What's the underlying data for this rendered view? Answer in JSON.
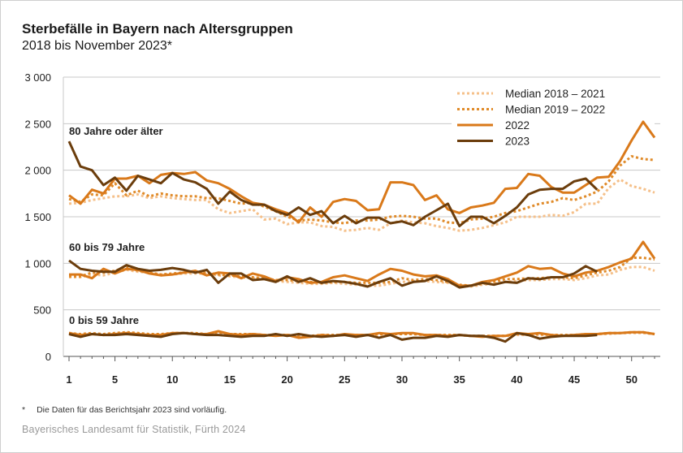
{
  "chart_data": {
    "type": "line",
    "title": "Sterbefälle in Bayern nach Altersgruppen",
    "subtitle": "2018 bis November 2023*",
    "xlabel": "",
    "ylabel": "",
    "ylim": [
      0,
      3000
    ],
    "yticks": [
      0,
      500,
      1000,
      1500,
      2000,
      2500,
      3000
    ],
    "ytick_labels": [
      "0",
      "500",
      "1 000",
      "1 500",
      "2 000",
      "2 500",
      "3 000"
    ],
    "xlim": [
      1,
      52
    ],
    "xticks": [
      1,
      5,
      10,
      15,
      20,
      25,
      30,
      35,
      40,
      45,
      50
    ],
    "grid": true,
    "legend_position": "top-right",
    "legend": [
      {
        "name": "Median 2018 – 2021",
        "color": "#f5c08a",
        "style": "dotted"
      },
      {
        "name": "Median 2019 – 2022",
        "color": "#e08b2a",
        "style": "dotted"
      },
      {
        "name": "2022",
        "color": "#d9791a",
        "style": "solid"
      },
      {
        "name": "2023",
        "color": "#6b3d0c",
        "style": "solid"
      }
    ],
    "groups": [
      {
        "label": "80 Jahre oder älter",
        "series": {
          "Median 2018 – 2021": [
            1640,
            1650,
            1680,
            1700,
            1720,
            1720,
            1740,
            1700,
            1720,
            1700,
            1690,
            1680,
            1680,
            1580,
            1540,
            1560,
            1580,
            1470,
            1480,
            1420,
            1440,
            1440,
            1400,
            1390,
            1350,
            1360,
            1380,
            1360,
            1430,
            1460,
            1440,
            1430,
            1400,
            1380,
            1350,
            1360,
            1380,
            1410,
            1440,
            1500,
            1500,
            1500,
            1520,
            1510,
            1550,
            1640,
            1640,
            1810,
            1900,
            1830,
            1800,
            1760
          ],
          "Median 2019 – 2022": [
            1690,
            1660,
            1740,
            1730,
            1860,
            1730,
            1780,
            1720,
            1750,
            1730,
            1720,
            1720,
            1700,
            1700,
            1670,
            1640,
            1650,
            1610,
            1560,
            1500,
            1460,
            1470,
            1460,
            1440,
            1430,
            1460,
            1460,
            1470,
            1500,
            1510,
            1500,
            1480,
            1480,
            1440,
            1430,
            1470,
            1480,
            1500,
            1540,
            1560,
            1600,
            1640,
            1660,
            1700,
            1680,
            1720,
            1770,
            1880,
            2050,
            2150,
            2120,
            2110
          ],
          "2022": [
            1730,
            1640,
            1790,
            1750,
            1910,
            1910,
            1940,
            1860,
            1950,
            1970,
            1960,
            1980,
            1890,
            1860,
            1800,
            1720,
            1650,
            1630,
            1580,
            1540,
            1440,
            1600,
            1500,
            1660,
            1690,
            1670,
            1570,
            1580,
            1870,
            1870,
            1840,
            1680,
            1730,
            1580,
            1540,
            1600,
            1620,
            1650,
            1800,
            1810,
            1960,
            1940,
            1820,
            1760,
            1760,
            1840,
            1920,
            1930,
            2100,
            2320,
            2520,
            2350
          ],
          "2023": [
            2310,
            2040,
            2000,
            1840,
            1920,
            1780,
            1940,
            1900,
            1860,
            1970,
            1900,
            1870,
            1800,
            1640,
            1770,
            1680,
            1630,
            1630,
            1560,
            1520,
            1600,
            1520,
            1560,
            1430,
            1510,
            1430,
            1490,
            1490,
            1430,
            1450,
            1410,
            1500,
            1570,
            1640,
            1400,
            1500,
            1500,
            1430,
            1510,
            1600,
            1740,
            1790,
            1800,
            1800,
            1880,
            1910,
            1790
          ]
        }
      },
      {
        "label": "60 bis 79 Jahre",
        "series": {
          "Median 2018 – 2021": [
            850,
            850,
            880,
            870,
            900,
            930,
            910,
            900,
            880,
            880,
            890,
            890,
            890,
            870,
            860,
            850,
            840,
            830,
            810,
            800,
            790,
            780,
            780,
            790,
            780,
            770,
            760,
            760,
            780,
            800,
            810,
            810,
            800,
            790,
            760,
            750,
            770,
            780,
            800,
            810,
            820,
            820,
            830,
            830,
            820,
            840,
            870,
            880,
            930,
            960,
            960,
            920
          ],
          "Median 2019 – 2022": [
            860,
            860,
            900,
            900,
            920,
            960,
            920,
            900,
            880,
            890,
            900,
            910,
            900,
            880,
            870,
            860,
            850,
            840,
            820,
            820,
            810,
            800,
            790,
            800,
            800,
            790,
            790,
            790,
            800,
            840,
            820,
            830,
            820,
            800,
            770,
            760,
            780,
            800,
            830,
            830,
            840,
            840,
            850,
            850,
            840,
            870,
            900,
            920,
            960,
            1060,
            1060,
            1040
          ],
          "2022": [
            880,
            880,
            840,
            940,
            890,
            940,
            930,
            890,
            870,
            880,
            900,
            920,
            870,
            900,
            890,
            840,
            890,
            860,
            810,
            850,
            830,
            790,
            800,
            850,
            870,
            840,
            810,
            880,
            940,
            920,
            880,
            860,
            870,
            830,
            760,
            760,
            800,
            820,
            860,
            900,
            970,
            940,
            950,
            890,
            860,
            900,
            920,
            960,
            1010,
            1050,
            1230,
            1050
          ],
          "2023": [
            1030,
            940,
            920,
            910,
            910,
            980,
            940,
            920,
            930,
            950,
            930,
            900,
            930,
            790,
            890,
            890,
            820,
            830,
            800,
            860,
            800,
            840,
            790,
            810,
            800,
            780,
            750,
            800,
            840,
            760,
            800,
            810,
            860,
            810,
            740,
            760,
            790,
            770,
            800,
            790,
            840,
            830,
            850,
            850,
            890,
            970,
            910
          ]
        }
      },
      {
        "label": "0 bis 59 Jahre",
        "series": {
          "Median 2018 – 2021": [
            250,
            240,
            240,
            240,
            250,
            260,
            250,
            240,
            240,
            250,
            250,
            250,
            240,
            250,
            240,
            240,
            240,
            230,
            230,
            230,
            220,
            220,
            230,
            230,
            230,
            230,
            230,
            230,
            240,
            240,
            240,
            230,
            230,
            230,
            230,
            220,
            220,
            220,
            220,
            230,
            230,
            230,
            230,
            230,
            230,
            240,
            240,
            240,
            250,
            250,
            250,
            240
          ],
          "Median 2019 – 2022": [
            250,
            240,
            250,
            240,
            250,
            260,
            250,
            240,
            240,
            250,
            250,
            250,
            240,
            260,
            240,
            240,
            240,
            230,
            230,
            230,
            220,
            220,
            230,
            230,
            230,
            230,
            230,
            240,
            240,
            240,
            240,
            230,
            230,
            230,
            230,
            220,
            220,
            220,
            220,
            240,
            240,
            240,
            230,
            230,
            230,
            240,
            240,
            250,
            250,
            260,
            260,
            240
          ],
          "2022": [
            250,
            230,
            240,
            230,
            240,
            250,
            240,
            230,
            230,
            250,
            250,
            240,
            240,
            270,
            240,
            230,
            240,
            230,
            220,
            230,
            200,
            210,
            230,
            220,
            240,
            230,
            230,
            250,
            240,
            250,
            250,
            230,
            230,
            220,
            230,
            220,
            210,
            220,
            220,
            250,
            240,
            250,
            230,
            220,
            230,
            240,
            240,
            250,
            250,
            260,
            260,
            240
          ],
          "2023": [
            240,
            210,
            240,
            230,
            230,
            240,
            230,
            220,
            210,
            240,
            250,
            240,
            230,
            230,
            220,
            210,
            220,
            220,
            240,
            220,
            240,
            220,
            210,
            220,
            230,
            210,
            230,
            200,
            230,
            180,
            200,
            200,
            220,
            210,
            230,
            220,
            220,
            200,
            160,
            250,
            230,
            190,
            210,
            220,
            220,
            220,
            230
          ]
        }
      }
    ]
  },
  "footnote": {
    "marker": "*",
    "text": "Die Daten für das Berichtsjahr 2023 sind vorläufig."
  },
  "source": "Bayerisches Landesamt für Statistik, Fürth 2024"
}
